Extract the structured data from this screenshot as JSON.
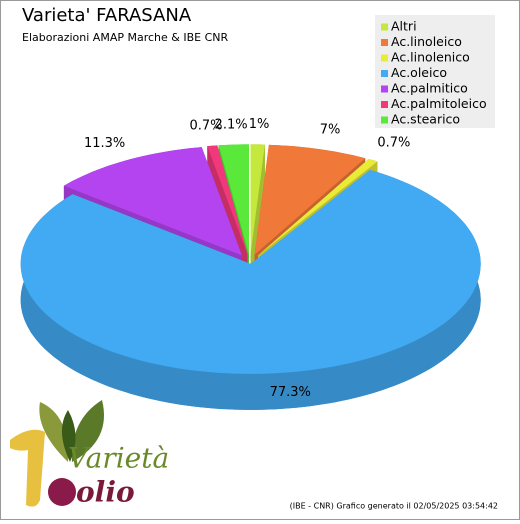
{
  "chart_data": {
    "type": "pie3d",
    "title": "Varieta' FARASANA",
    "subtitle": "Elaborazioni AMAP Marche & IBE CNR",
    "categories": [
      "Altri",
      "Ac.linoleico",
      "Ac.linolenico",
      "Ac.oleico",
      "Ac.palmitico",
      "Ac.palmitoleico",
      "Ac.stearico"
    ],
    "values": [
      1,
      7,
      0.7,
      77.3,
      11.3,
      0.7,
      2.1
    ],
    "value_labels": [
      "1%",
      "7%",
      "0.7%",
      "77.3%",
      "11.3%",
      "0.7%",
      "2.1%"
    ],
    "colors": [
      "#c4e83c",
      "#f07838",
      "#eaea38",
      "#42aaf2",
      "#b444f0",
      "#f0387a",
      "#5ae83a"
    ],
    "legend": "top-right",
    "footer": "(IBE - CNR) Grafico generato il 02/05/2025 03:54:42",
    "logo": {
      "top": "Varietà",
      "bottom": "olio"
    }
  }
}
